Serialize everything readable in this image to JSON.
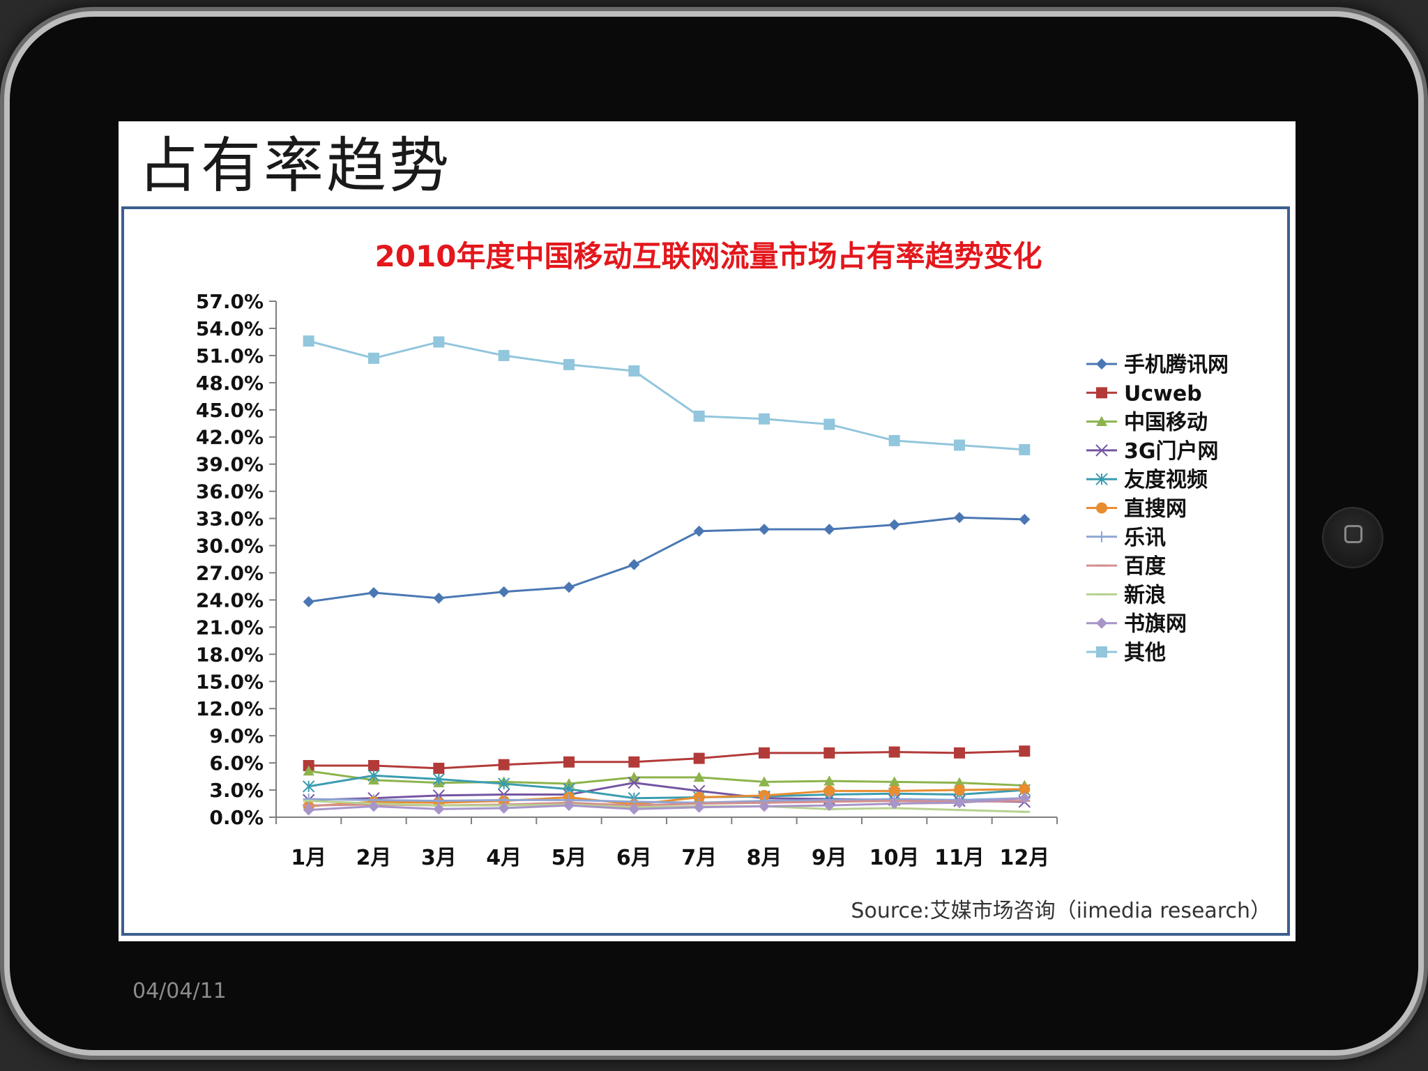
{
  "slide": {
    "title": "占有率趋势",
    "date": "04/04/11"
  },
  "colors": {
    "title_red": "#e3171c",
    "frame_blue": "#3c5f8e",
    "axis": "#7f7f7f"
  },
  "chart_data": {
    "type": "line",
    "title": "2010年度中国移动互联网流量市场占有率趋势变化",
    "source": "Source:艾媒市场咨询（iimedia  research）",
    "categories": [
      "1月",
      "2月",
      "3月",
      "4月",
      "5月",
      "6月",
      "7月",
      "8月",
      "9月",
      "10月",
      "11月",
      "12月"
    ],
    "ylim": [
      0,
      57
    ],
    "yticks": [
      "0.0%",
      "3.0%",
      "6.0%",
      "9.0%",
      "12.0%",
      "15.0%",
      "18.0%",
      "21.0%",
      "24.0%",
      "27.0%",
      "30.0%",
      "33.0%",
      "36.0%",
      "39.0%",
      "42.0%",
      "45.0%",
      "48.0%",
      "51.0%",
      "54.0%",
      "57.0%"
    ],
    "legend_position": "right",
    "series": [
      {
        "name": "手机腾讯网",
        "color": "#4a77b3",
        "marker": "diamond",
        "values": [
          23.8,
          24.8,
          24.2,
          24.9,
          25.4,
          27.9,
          31.6,
          31.8,
          31.8,
          32.3,
          33.1,
          32.9
        ]
      },
      {
        "name": "Ucweb",
        "color": "#b23b3a",
        "marker": "square",
        "values": [
          5.7,
          5.7,
          5.4,
          5.8,
          6.1,
          6.1,
          6.5,
          7.1,
          7.1,
          7.2,
          7.1,
          7.3
        ]
      },
      {
        "name": "中国移动",
        "color": "#8db34c",
        "marker": "triangle",
        "values": [
          5.1,
          4.1,
          3.8,
          3.9,
          3.7,
          4.4,
          4.4,
          3.9,
          4.0,
          3.9,
          3.8,
          3.5
        ]
      },
      {
        "name": "3G门户网",
        "color": "#7455a3",
        "marker": "x",
        "values": [
          1.9,
          2.1,
          2.4,
          2.5,
          2.5,
          3.8,
          2.9,
          2.1,
          2.0,
          1.9,
          1.8,
          1.7
        ]
      },
      {
        "name": "友度视频",
        "color": "#3a9cb0",
        "marker": "star",
        "values": [
          3.4,
          4.6,
          4.2,
          3.7,
          3.1,
          2.1,
          2.2,
          2.3,
          2.5,
          2.6,
          2.5,
          3.0
        ]
      },
      {
        "name": "直搜网",
        "color": "#e88c30",
        "marker": "circle",
        "values": [
          1.2,
          1.7,
          1.6,
          1.8,
          2.2,
          1.4,
          2.2,
          2.4,
          2.9,
          2.9,
          3.0,
          3.1
        ]
      },
      {
        "name": "乐讯",
        "color": "#8ea5d4",
        "marker": "plus",
        "values": [
          2.0,
          1.9,
          1.8,
          1.9,
          1.9,
          1.7,
          1.6,
          1.8,
          1.9,
          2.0,
          1.9,
          2.1
        ]
      },
      {
        "name": "百度",
        "color": "#d48f8f",
        "marker": "dash",
        "values": [
          1.3,
          1.4,
          1.3,
          1.4,
          1.6,
          1.3,
          1.5,
          1.6,
          1.7,
          1.8,
          1.7,
          1.8
        ]
      },
      {
        "name": "新浪",
        "color": "#b7d191",
        "marker": "dash",
        "values": [
          1.8,
          1.5,
          1.3,
          1.3,
          1.4,
          1.1,
          1.2,
          1.2,
          0.9,
          1.0,
          0.8,
          0.6
        ]
      },
      {
        "name": "书旗网",
        "color": "#a795c8",
        "marker": "diamond",
        "values": [
          0.8,
          1.2,
          0.9,
          1.0,
          1.3,
          0.9,
          1.1,
          1.2,
          1.3,
          1.5,
          1.6,
          2.1
        ]
      },
      {
        "name": "其他",
        "color": "#92c6dc",
        "marker": "square",
        "values": [
          52.6,
          50.7,
          52.5,
          51.0,
          50.0,
          49.3,
          44.3,
          44.0,
          43.4,
          41.6,
          41.1,
          40.6
        ]
      }
    ]
  }
}
